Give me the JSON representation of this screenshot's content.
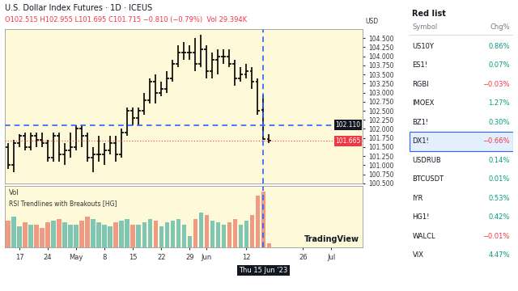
{
  "chart_data": {
    "type": "ohlc",
    "title": "U.S. Dollar Index Futures · 1D · ICEUS",
    "subtitle": "O102.515 H102.955 L101.695 C101.715 −0.810 (−0.79%)  Vol 29.394K",
    "currency": "USD",
    "indicators": [
      "Vol",
      "RSI Trendlines with Breakouts [HG]"
    ],
    "watermark": "TradingView",
    "grid": false,
    "color": "#000000",
    "categories": [
      null,
      null,
      "17",
      null,
      null,
      null,
      null,
      "24",
      null,
      null,
      null,
      null,
      "May",
      null,
      null,
      null,
      null,
      "8",
      null,
      null,
      null,
      null,
      "15",
      null,
      null,
      null,
      null,
      "22",
      null,
      null,
      null,
      null,
      "29",
      null,
      null,
      "Jun",
      null,
      null,
      null,
      null,
      null,
      null,
      "12",
      null,
      null,
      "Thu 15 Jun '23",
      null,
      null,
      null,
      null,
      null,
      null,
      "26",
      null,
      null,
      null,
      null,
      "Jul",
      null,
      null,
      null,
      null,
      null
    ],
    "open": [
      101.5,
      101.0,
      101.6,
      101.8,
      101.5,
      101.8,
      101.7,
      101.6,
      101.2,
      101.8,
      101.3,
      101.4,
      101.5,
      102.0,
      101.8,
      101.2,
      101.3,
      101.3,
      101.4,
      101.6,
      101.3,
      101.9,
      102.5,
      102.3,
      102.5,
      102.8,
      103.3,
      103.0,
      103.1,
      103.4,
      103.8,
      104.1,
      104.1,
      104.1,
      103.8,
      104.2,
      103.6,
      103.9,
      104.0,
      104.0,
      103.8,
      103.4,
      103.5,
      103.6,
      103.3,
      102.515,
      101.715,
      null,
      null,
      null,
      null,
      null,
      null,
      null,
      null,
      null,
      null,
      null,
      null,
      null,
      null,
      null,
      null
    ],
    "high": [
      101.6,
      101.7,
      101.85,
      101.9,
      101.9,
      101.9,
      101.9,
      101.7,
      101.9,
      101.9,
      101.6,
      101.9,
      102.1,
      102.1,
      101.9,
      101.5,
      101.8,
      101.6,
      101.8,
      101.8,
      102.0,
      102.6,
      102.6,
      102.6,
      103.0,
      103.4,
      103.5,
      103.3,
      103.6,
      103.9,
      104.3,
      104.4,
      104.3,
      104.5,
      104.6,
      104.3,
      104.1,
      104.2,
      104.2,
      104.2,
      103.9,
      103.7,
      103.8,
      103.7,
      103.4,
      102.955,
      101.85,
      null,
      null,
      null,
      null,
      null,
      null,
      null,
      null,
      null,
      null,
      null,
      null,
      null,
      null,
      null,
      null
    ],
    "low": [
      100.9,
      100.8,
      101.5,
      101.4,
      101.4,
      101.5,
      101.5,
      101.1,
      101.1,
      101.1,
      101.0,
      101.2,
      101.4,
      101.5,
      101.1,
      100.8,
      101.1,
      101.0,
      101.3,
      101.1,
      101.2,
      101.8,
      102.1,
      102.1,
      102.4,
      102.7,
      102.7,
      102.9,
      103.0,
      103.3,
      103.7,
      103.9,
      103.9,
      103.6,
      103.7,
      103.4,
      103.4,
      103.5,
      103.8,
      103.7,
      103.2,
      103.3,
      103.4,
      103.1,
      102.4,
      101.695,
      101.6,
      null,
      null,
      null,
      null,
      null,
      null,
      null,
      null,
      null,
      null,
      null,
      null,
      null,
      null,
      null,
      null
    ],
    "close": [
      101.0,
      101.6,
      101.8,
      101.5,
      101.8,
      101.7,
      101.6,
      101.2,
      101.8,
      101.3,
      101.4,
      101.5,
      102.0,
      101.8,
      101.2,
      101.3,
      101.3,
      101.4,
      101.6,
      101.3,
      101.9,
      102.5,
      102.3,
      102.5,
      102.8,
      103.3,
      103.0,
      103.1,
      103.4,
      103.8,
      104.1,
      104.1,
      104.1,
      103.8,
      104.2,
      103.6,
      103.9,
      104.0,
      104.0,
      103.8,
      103.4,
      103.5,
      103.6,
      103.3,
      102.5,
      101.715,
      101.665,
      null,
      null,
      null,
      null,
      null,
      null,
      null,
      null,
      null,
      null,
      null,
      null,
      null,
      null,
      null,
      null
    ],
    "ylim": [
      100.5,
      104.75
    ],
    "yticks": [
      {
        "value": 100.5,
        "label": "100.500"
      },
      {
        "value": 100.75,
        "label": "100.750"
      },
      {
        "value": 101.0,
        "label": "101.000"
      },
      {
        "value": 101.25,
        "label": "101.250"
      },
      {
        "value": 101.5,
        "label": "101.500"
      },
      {
        "value": 101.75,
        "label": "101.750"
      },
      {
        "value": 102.0,
        "label": "102.000"
      },
      {
        "value": 102.25,
        "label": "102.250"
      },
      {
        "value": 102.5,
        "label": "102.500"
      },
      {
        "value": 102.75,
        "label": "102.750"
      },
      {
        "value": 103.0,
        "label": "103.000"
      },
      {
        "value": 103.25,
        "label": "103.250"
      },
      {
        "value": 103.5,
        "label": "103.500"
      },
      {
        "value": 103.75,
        "label": "103.750"
      },
      {
        "value": 104.0,
        "label": "104.000"
      },
      {
        "value": 104.25,
        "label": "104.250"
      },
      {
        "value": 104.5,
        "label": "104.500"
      }
    ],
    "crosshair": {
      "x": "Thu 15 Jun '23",
      "y": {
        "value": 102.11,
        "label": "102.110"
      }
    },
    "last_price": {
      "value": 101.665,
      "label": "101.665"
    },
    "volume": {
      "name": "Vol",
      "ylim": [
        0,
        32
      ],
      "values": [
        14,
        16,
        11,
        13,
        12,
        12,
        10,
        13,
        14,
        15,
        13,
        12,
        12,
        14,
        16,
        15,
        13,
        12,
        11,
        13,
        14,
        15,
        12,
        12,
        13,
        15,
        14,
        11,
        13,
        14,
        15,
        12,
        6,
        15,
        18,
        17,
        14,
        13,
        12,
        13,
        15,
        12,
        14,
        17,
        27,
        29.394,
        2.3,
        null,
        null,
        null,
        null,
        null,
        null,
        null,
        null,
        null,
        null,
        null,
        null,
        null,
        null,
        null,
        null
      ],
      "colors": [
        "#ef9a84",
        "#7fc6b4",
        "#7fc6b4",
        "#ef9a84",
        "#7fc6b4",
        "#ef9a84",
        "#ef9a84",
        "#ef9a84",
        "#7fc6b4",
        "#ef9a84",
        "#7fc6b4",
        "#7fc6b4",
        "#7fc6b4",
        "#ef9a84",
        "#ef9a84",
        "#7fc6b4",
        "#7fc6b4",
        "#7fc6b4",
        "#7fc6b4",
        "#ef9a84",
        "#7fc6b4",
        "#7fc6b4",
        "#ef9a84",
        "#7fc6b4",
        "#7fc6b4",
        "#7fc6b4",
        "#ef9a84",
        "#7fc6b4",
        "#7fc6b4",
        "#7fc6b4",
        "#7fc6b4",
        "#7fc6b4",
        "#7fc6b4",
        "#ef9a84",
        "#7fc6b4",
        "#ef9a84",
        "#7fc6b4",
        "#7fc6b4",
        "#7fc6b4",
        "#ef9a84",
        "#ef9a84",
        "#7fc6b4",
        "#7fc6b4",
        "#ef9a84",
        "#ef9a84",
        "#ef9a84",
        "#ef9a84"
      ]
    }
  },
  "watchlist": {
    "title": "Red list",
    "columns": [
      "Symbol",
      "Chg%"
    ],
    "selected": "DX1!",
    "rows": [
      {
        "symbol": "US10Y",
        "change": 0.86,
        "label": "0.86%"
      },
      {
        "symbol": "ES1!",
        "change": 0.07,
        "label": "0.07%"
      },
      {
        "symbol": "RGBI",
        "change": -0.03,
        "label": "−0.03%"
      },
      {
        "symbol": "IMOEX",
        "change": 1.27,
        "label": "1.27%"
      },
      {
        "symbol": "BZ1!",
        "change": 0.3,
        "label": "0.30%"
      },
      {
        "symbol": "DX1!",
        "change": -0.66,
        "label": "−0.66%"
      },
      {
        "symbol": "USDRUB",
        "change": 0.14,
        "label": "0.14%"
      },
      {
        "symbol": "BTCUSDT",
        "change": 0.01,
        "label": "0.01%"
      },
      {
        "symbol": "IYR",
        "change": 0.53,
        "label": "0.53%"
      },
      {
        "symbol": "HG1!",
        "change": 0.42,
        "label": "0.42%"
      },
      {
        "symbol": "WALCL",
        "change": -0.01,
        "label": "−0.01%"
      },
      {
        "symbol": "VIX",
        "change": 4.47,
        "label": "4.47%"
      }
    ]
  }
}
